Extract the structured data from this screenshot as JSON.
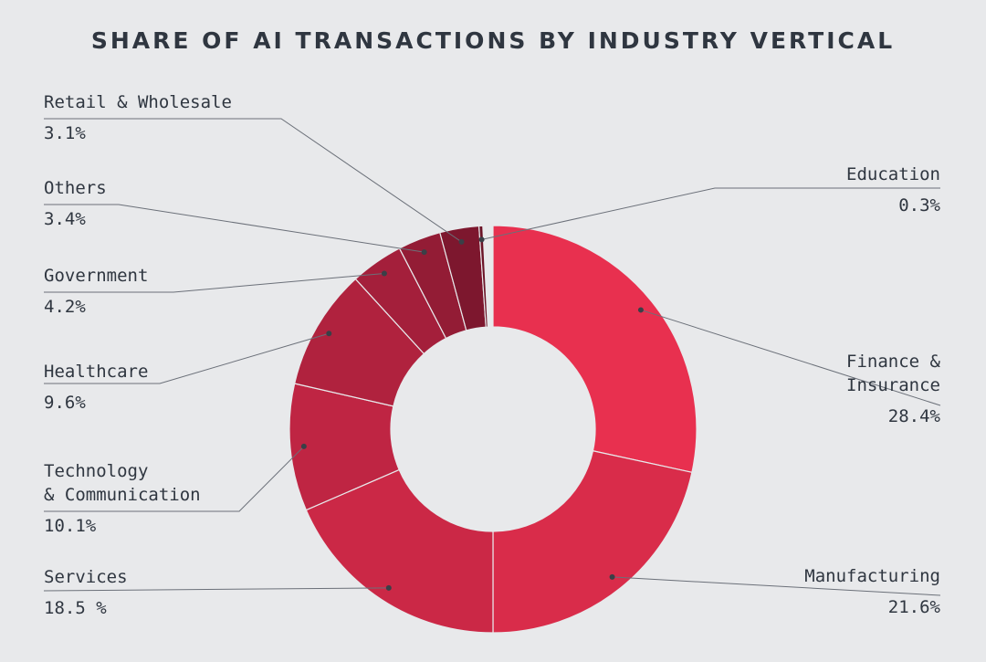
{
  "chart_data": {
    "type": "pie",
    "variant": "donut",
    "title": "SHARE OF AI TRANSACTIONS BY INDUSTRY VERTICAL",
    "start": "top, clockwise",
    "slices": [
      {
        "label": "Finance & Insurance",
        "value": 28.4,
        "display": "28.4%",
        "color": "#e8304f"
      },
      {
        "label": "Manufacturing",
        "value": 21.6,
        "display": "21.6%",
        "color": "#d92c4a"
      },
      {
        "label": "Services",
        "value": 18.5,
        "display": "18.5 %",
        "color": "#cb2846"
      },
      {
        "label": "Technology & Communication",
        "value": 10.1,
        "display": "10.1%",
        "color": "#bf2543"
      },
      {
        "label": "Healthcare",
        "value": 9.6,
        "display": "9.6%",
        "color": "#b0223e"
      },
      {
        "label": "Government",
        "value": 4.2,
        "display": "4.2%",
        "color": "#a41f3b"
      },
      {
        "label": "Others",
        "value": 3.4,
        "display": "3.4%",
        "color": "#931c35"
      },
      {
        "label": "Retail & Wholesale",
        "value": 3.1,
        "display": "3.1%",
        "color": "#7d172e"
      },
      {
        "label": "Education",
        "value": 0.3,
        "display": "0.3%",
        "color": "#6b1427"
      }
    ],
    "label_lines": {
      "Finance & Insurance": [
        "Finance &",
        "Insurance"
      ],
      "Technology & Communication": [
        "Technology",
        "& Communication"
      ]
    }
  }
}
